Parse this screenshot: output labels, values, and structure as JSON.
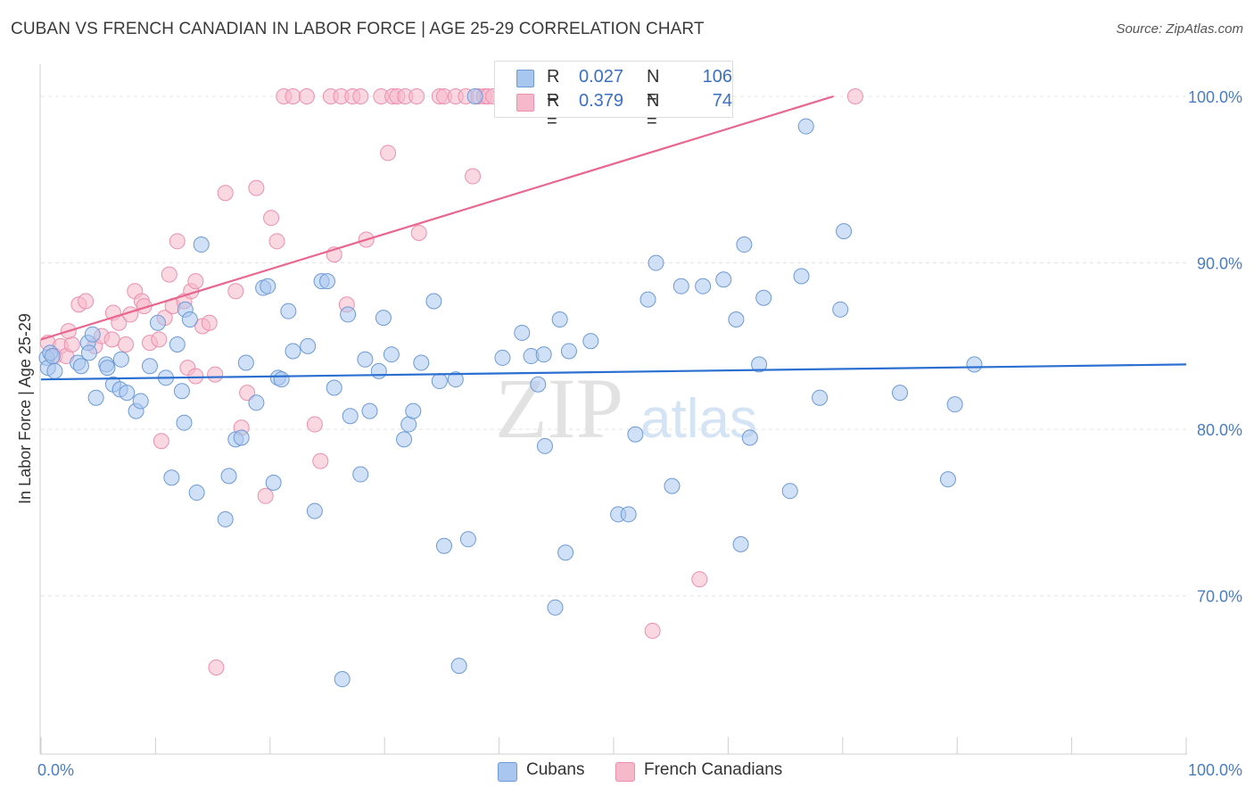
{
  "title": "CUBAN VS FRENCH CANADIAN IN LABOR FORCE | AGE 25-29 CORRELATION CHART",
  "source": "Source: ZipAtlas.com",
  "watermark": {
    "zip": "ZIP",
    "atlas": "atlas"
  },
  "legend": {
    "cubans": {
      "r_label": "R =",
      "r_value": "0.027",
      "n_label": "N =",
      "n_value": "106"
    },
    "french": {
      "r_label": "R =",
      "r_value": "0.379",
      "n_label": "N =",
      "n_value": "74"
    }
  },
  "bottom_legend": {
    "cubans": "Cubans",
    "french": "French Canadians"
  },
  "colors": {
    "blue_fill": "#a9c6ee",
    "blue_stroke": "#6d9ad6",
    "blue_line": "#2b6fd1",
    "pink_fill": "#f6b8cb",
    "pink_stroke": "#ec8fae",
    "pink_line": "#e8678f",
    "tick_text": "#4a7cc4"
  },
  "chart_data": {
    "type": "scatter",
    "title": "CUBAN VS FRENCH CANADIAN IN LABOR FORCE | AGE 25-29 CORRELATION CHART",
    "xlabel": "",
    "ylabel": "In Labor Force | Age 25-29",
    "xlim": [
      0,
      100
    ],
    "ylim": [
      60.5,
      101.5
    ],
    "x_tick_labels": [
      {
        "value": 0,
        "label": "0.0%"
      },
      {
        "value": 100,
        "label": "100.0%"
      }
    ],
    "y_tick_labels": [
      {
        "value": 100,
        "label": "100.0%"
      },
      {
        "value": 90,
        "label": "90.0%"
      },
      {
        "value": 80,
        "label": "80.0%"
      },
      {
        "value": 70,
        "label": "70.0%"
      }
    ],
    "series": [
      {
        "name": "Cubans",
        "color": "#a9c6ee",
        "trend": {
          "x": [
            0,
            100
          ],
          "y": [
            83.0,
            83.9
          ]
        },
        "points": [
          [
            0.5,
            84.3
          ],
          [
            0.6,
            83.7
          ],
          [
            0.8,
            84.6
          ],
          [
            1.0,
            84.4
          ],
          [
            1.2,
            83.5
          ],
          [
            3.2,
            84.0
          ],
          [
            3.5,
            83.8
          ],
          [
            4.1,
            85.2
          ],
          [
            4.5,
            85.7
          ],
          [
            4.2,
            84.6
          ],
          [
            4.8,
            81.9
          ],
          [
            5.7,
            83.9
          ],
          [
            5.8,
            83.7
          ],
          [
            6.3,
            82.7
          ],
          [
            6.9,
            82.4
          ],
          [
            7.0,
            84.2
          ],
          [
            7.5,
            82.2
          ],
          [
            8.3,
            81.1
          ],
          [
            8.7,
            81.7
          ],
          [
            9.5,
            83.8
          ],
          [
            10.2,
            86.4
          ],
          [
            10.9,
            83.1
          ],
          [
            11.9,
            85.1
          ],
          [
            12.3,
            82.3
          ],
          [
            12.6,
            87.2
          ],
          [
            14.0,
            91.1
          ],
          [
            11.4,
            77.1
          ],
          [
            12.5,
            80.4
          ],
          [
            13.0,
            86.6
          ],
          [
            13.6,
            76.2
          ],
          [
            16.4,
            77.2
          ],
          [
            16.1,
            74.6
          ],
          [
            17.0,
            79.4
          ],
          [
            17.5,
            79.5
          ],
          [
            17.9,
            84.0
          ],
          [
            18.8,
            81.6
          ],
          [
            19.4,
            88.5
          ],
          [
            19.8,
            88.6
          ],
          [
            20.3,
            76.8
          ],
          [
            20.7,
            83.1
          ],
          [
            21.0,
            83.0
          ],
          [
            21.6,
            87.1
          ],
          [
            22.0,
            84.7
          ],
          [
            23.3,
            85.0
          ],
          [
            23.9,
            75.1
          ],
          [
            24.5,
            88.9
          ],
          [
            25.0,
            88.9
          ],
          [
            25.6,
            82.5
          ],
          [
            26.3,
            65.0
          ],
          [
            26.8,
            86.9
          ],
          [
            27.0,
            80.8
          ],
          [
            27.9,
            77.3
          ],
          [
            28.3,
            84.2
          ],
          [
            28.7,
            81.1
          ],
          [
            29.5,
            83.5
          ],
          [
            29.9,
            86.7
          ],
          [
            30.6,
            84.5
          ],
          [
            31.7,
            79.4
          ],
          [
            32.1,
            80.3
          ],
          [
            32.5,
            81.1
          ],
          [
            33.2,
            84.0
          ],
          [
            34.3,
            87.7
          ],
          [
            34.8,
            82.9
          ],
          [
            35.2,
            73.0
          ],
          [
            36.2,
            83.0
          ],
          [
            36.5,
            65.8
          ],
          [
            37.3,
            73.4
          ],
          [
            37.9,
            100.0
          ],
          [
            40.3,
            84.3
          ],
          [
            42.0,
            85.8
          ],
          [
            42.8,
            84.4
          ],
          [
            43.4,
            82.7
          ],
          [
            43.9,
            84.5
          ],
          [
            44.0,
            79.0
          ],
          [
            44.9,
            69.3
          ],
          [
            45.3,
            86.6
          ],
          [
            45.8,
            72.6
          ],
          [
            46.1,
            84.7
          ],
          [
            48.0,
            85.3
          ],
          [
            50.4,
            74.9
          ],
          [
            51.3,
            74.9
          ],
          [
            51.9,
            79.7
          ],
          [
            53.0,
            87.8
          ],
          [
            53.7,
            90.0
          ],
          [
            55.1,
            76.6
          ],
          [
            55.9,
            88.6
          ],
          [
            57.8,
            88.6
          ],
          [
            59.6,
            89.0
          ],
          [
            60.7,
            86.6
          ],
          [
            61.1,
            73.1
          ],
          [
            61.4,
            91.1
          ],
          [
            61.9,
            79.5
          ],
          [
            62.7,
            83.9
          ],
          [
            63.1,
            87.9
          ],
          [
            65.4,
            76.3
          ],
          [
            66.4,
            89.2
          ],
          [
            66.8,
            98.2
          ],
          [
            68.0,
            81.9
          ],
          [
            69.8,
            87.2
          ],
          [
            70.1,
            91.9
          ],
          [
            75.0,
            82.2
          ],
          [
            79.2,
            77.0
          ],
          [
            79.8,
            81.5
          ],
          [
            81.5,
            83.9
          ]
        ]
      },
      {
        "name": "French Canadians",
        "color": "#f6b8cb",
        "trend": {
          "x": [
            0,
            69.2
          ],
          "y": [
            85.4,
            100.0
          ]
        },
        "points": [
          [
            0.6,
            85.2
          ],
          [
            1.2,
            84.4
          ],
          [
            1.7,
            85.0
          ],
          [
            2.2,
            84.4
          ],
          [
            2.7,
            85.1
          ],
          [
            3.3,
            87.5
          ],
          [
            3.9,
            87.7
          ],
          [
            2.4,
            85.9
          ],
          [
            4.7,
            85.0
          ],
          [
            5.3,
            85.6
          ],
          [
            6.2,
            85.4
          ],
          [
            6.3,
            87.0
          ],
          [
            6.8,
            86.4
          ],
          [
            7.4,
            85.1
          ],
          [
            7.8,
            86.9
          ],
          [
            8.2,
            88.3
          ],
          [
            8.8,
            87.7
          ],
          [
            9.0,
            87.4
          ],
          [
            9.5,
            85.2
          ],
          [
            10.3,
            85.4
          ],
          [
            10.8,
            86.7
          ],
          [
            11.2,
            89.3
          ],
          [
            11.5,
            87.4
          ],
          [
            11.9,
            91.3
          ],
          [
            12.5,
            87.7
          ],
          [
            13.1,
            88.3
          ],
          [
            13.5,
            88.9
          ],
          [
            14.1,
            86.2
          ],
          [
            14.7,
            86.4
          ],
          [
            10.5,
            79.3
          ],
          [
            12.8,
            83.7
          ],
          [
            13.5,
            83.2
          ],
          [
            15.2,
            83.3
          ],
          [
            15.3,
            65.7
          ],
          [
            16.1,
            94.2
          ],
          [
            17.0,
            88.3
          ],
          [
            17.5,
            80.1
          ],
          [
            18.0,
            82.2
          ],
          [
            18.8,
            94.5
          ],
          [
            19.6,
            76.0
          ],
          [
            20.1,
            92.7
          ],
          [
            20.6,
            91.3
          ],
          [
            21.2,
            100.0
          ],
          [
            22.0,
            100.0
          ],
          [
            23.2,
            100.0
          ],
          [
            23.9,
            80.3
          ],
          [
            24.4,
            78.1
          ],
          [
            25.3,
            100.0
          ],
          [
            25.6,
            90.5
          ],
          [
            26.2,
            100.0
          ],
          [
            26.7,
            87.5
          ],
          [
            27.2,
            100.0
          ],
          [
            27.9,
            100.0
          ],
          [
            28.4,
            91.4
          ],
          [
            29.7,
            100.0
          ],
          [
            30.3,
            96.6
          ],
          [
            30.7,
            100.0
          ],
          [
            31.1,
            100.0
          ],
          [
            31.8,
            100.0
          ],
          [
            32.8,
            100.0
          ],
          [
            33.0,
            91.8
          ],
          [
            34.8,
            100.0
          ],
          [
            35.2,
            100.0
          ],
          [
            36.2,
            100.0
          ],
          [
            37.1,
            100.0
          ],
          [
            37.7,
            95.2
          ],
          [
            38.2,
            100.0
          ],
          [
            38.7,
            100.0
          ],
          [
            39.0,
            100.0
          ],
          [
            39.5,
            100.0
          ],
          [
            53.4,
            67.9
          ],
          [
            57.5,
            71.0
          ],
          [
            71.1,
            100.0
          ]
        ]
      }
    ]
  }
}
